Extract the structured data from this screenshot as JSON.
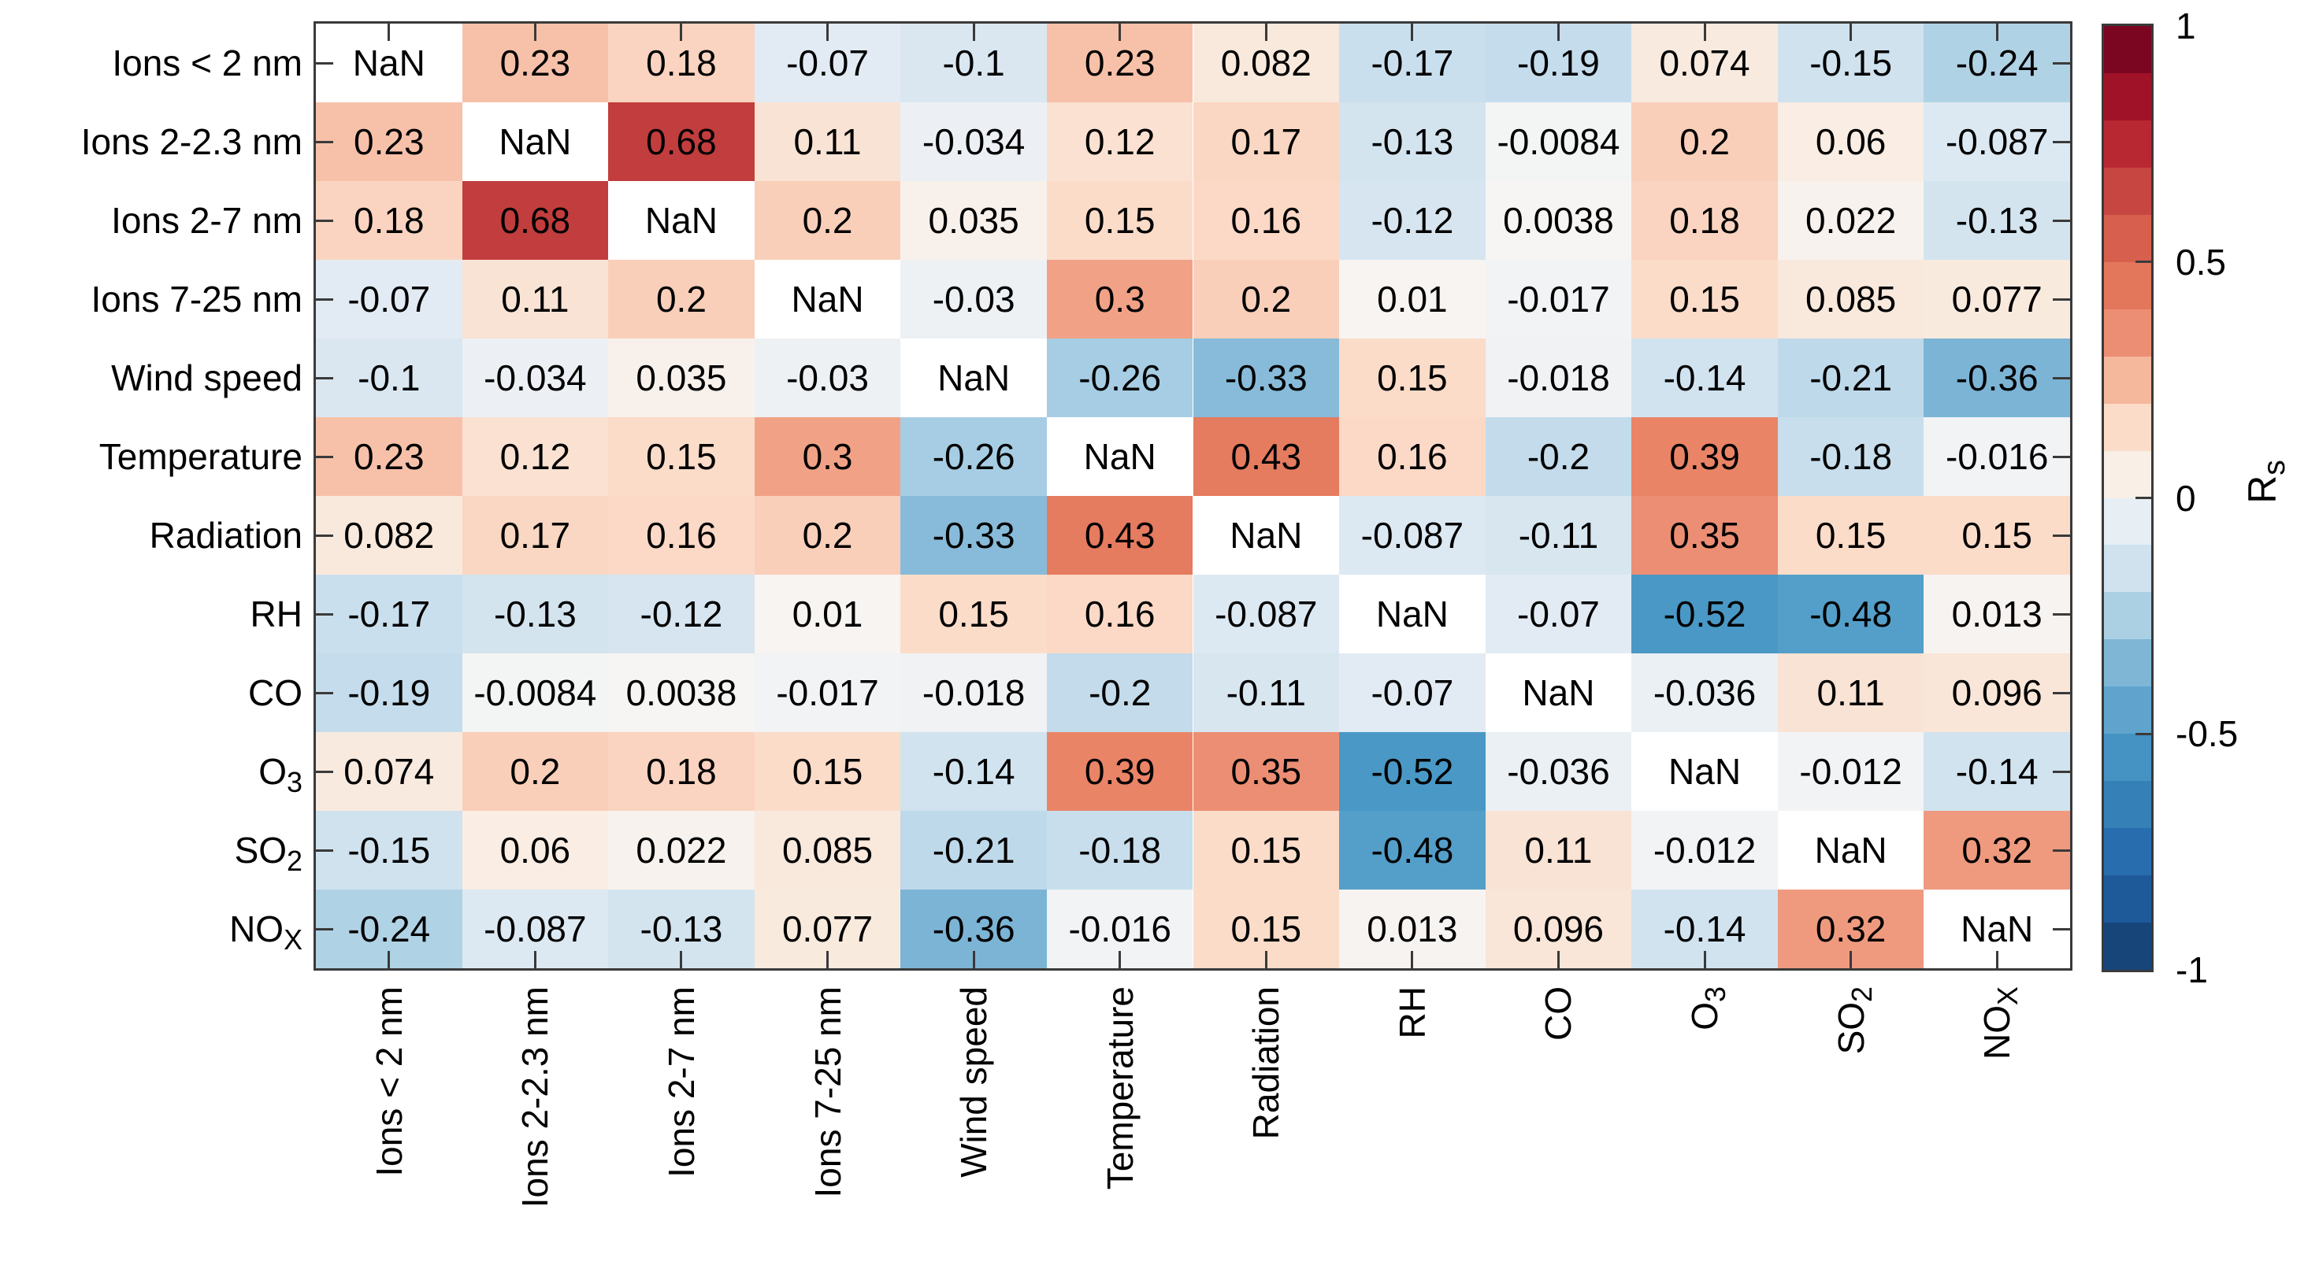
{
  "chart_data": {
    "type": "heatmap",
    "title": "",
    "subtitle": "",
    "xlabel": "",
    "ylabel": "",
    "note_markup": "text between tildes like O~3~ denotes a subscript",
    "categories": [
      "Ions < 2 nm",
      "Ions 2-2.3 nm",
      "Ions 2-7 nm",
      "Ions 7-25 nm",
      "Wind speed",
      "Temperature",
      "Radiation",
      "RH",
      "CO",
      "O~3~",
      "SO~2~",
      "NO~X~"
    ],
    "matrix": [
      [
        "NaN",
        "0.23",
        "0.18",
        "-0.07",
        "-0.1",
        "0.23",
        "0.082",
        "-0.17",
        "-0.19",
        "0.074",
        "-0.15",
        "-0.24"
      ],
      [
        "0.23",
        "NaN",
        "0.68",
        "0.11",
        "-0.034",
        "0.12",
        "0.17",
        "-0.13",
        "-0.0084",
        "0.2",
        "0.06",
        "-0.087"
      ],
      [
        "0.18",
        "0.68",
        "NaN",
        "0.2",
        "0.035",
        "0.15",
        "0.16",
        "-0.12",
        "0.0038",
        "0.18",
        "0.022",
        "-0.13"
      ],
      [
        "-0.07",
        "0.11",
        "0.2",
        "NaN",
        "-0.03",
        "0.3",
        "0.2",
        "0.01",
        "-0.017",
        "0.15",
        "0.085",
        "0.077"
      ],
      [
        "-0.1",
        "-0.034",
        "0.035",
        "-0.03",
        "NaN",
        "-0.26",
        "-0.33",
        "0.15",
        "-0.018",
        "-0.14",
        "-0.21",
        "-0.36"
      ],
      [
        "0.23",
        "0.12",
        "0.15",
        "0.3",
        "-0.26",
        "NaN",
        "0.43",
        "0.16",
        "-0.2",
        "0.39",
        "-0.18",
        "-0.016"
      ],
      [
        "0.082",
        "0.17",
        "0.16",
        "0.2",
        "-0.33",
        "0.43",
        "NaN",
        "-0.087",
        "-0.11",
        "0.35",
        "0.15",
        "0.15"
      ],
      [
        "-0.17",
        "-0.13",
        "-0.12",
        "0.01",
        "0.15",
        "0.16",
        "-0.087",
        "NaN",
        "-0.07",
        "-0.52",
        "-0.48",
        "0.013"
      ],
      [
        "-0.19",
        "-0.0084",
        "0.0038",
        "-0.017",
        "-0.018",
        "-0.2",
        "-0.11",
        "-0.07",
        "NaN",
        "-0.036",
        "0.11",
        "0.096"
      ],
      [
        "0.074",
        "0.2",
        "0.18",
        "0.15",
        "-0.14",
        "0.39",
        "0.35",
        "-0.52",
        "-0.036",
        "NaN",
        "-0.012",
        "-0.14"
      ],
      [
        "-0.15",
        "0.06",
        "0.022",
        "0.085",
        "-0.21",
        "-0.18",
        "0.15",
        "-0.48",
        "0.11",
        "-0.012",
        "NaN",
        "0.32"
      ],
      [
        "-0.24",
        "-0.087",
        "-0.13",
        "0.077",
        "-0.36",
        "-0.016",
        "0.15",
        "0.013",
        "0.096",
        "-0.14",
        "0.32",
        "NaN"
      ]
    ],
    "nan_color": "#ffffff",
    "colorbar": {
      "label": "R~s~",
      "ticks": [
        "1",
        "0.5",
        "0",
        "-0.5",
        "-1"
      ],
      "tick_values": [
        1,
        0.5,
        0,
        -0.5,
        -1
      ],
      "range": [
        -1,
        1
      ],
      "n_bands": 20,
      "band_step": 0.1
    },
    "layout": {
      "x_tick_rotation_deg": 90,
      "grid": false,
      "box": true,
      "tick_dir": "in"
    },
    "colormap_stops": [
      [
        -1.0,
        "#113a68"
      ],
      [
        -0.9,
        "#1c4f8c"
      ],
      [
        -0.8,
        "#2063a8"
      ],
      [
        -0.7,
        "#2f77b3"
      ],
      [
        -0.6,
        "#3d8abe"
      ],
      [
        -0.5,
        "#4d9bc7"
      ],
      [
        -0.4,
        "#72add2"
      ],
      [
        -0.35,
        "#7fb6d6"
      ],
      [
        -0.3,
        "#93c3dd"
      ],
      [
        -0.25,
        "#abd0e4"
      ],
      [
        -0.2,
        "#c3dbeb"
      ],
      [
        -0.15,
        "#cfe2ee"
      ],
      [
        -0.1,
        "#dae7f1"
      ],
      [
        -0.05,
        "#e7eef4"
      ],
      [
        0.0,
        "#f6f5f4"
      ],
      [
        0.05,
        "#f9efe7"
      ],
      [
        0.1,
        "#f9e5d7"
      ],
      [
        0.15,
        "#fbdcc9"
      ],
      [
        0.2,
        "#f9cfba"
      ],
      [
        0.25,
        "#f5b89d"
      ],
      [
        0.3,
        "#f1a286"
      ],
      [
        0.35,
        "#ec8e74"
      ],
      [
        0.4,
        "#e98164"
      ],
      [
        0.5,
        "#dc6c53"
      ],
      [
        0.6,
        "#d05447"
      ],
      [
        0.7,
        "#be373b"
      ],
      [
        0.8,
        "#b2182b"
      ],
      [
        0.9,
        "#8d0c25"
      ],
      [
        1.0,
        "#67001f"
      ]
    ],
    "axis_color": "#3a3a3a",
    "text_color": "#000000"
  }
}
